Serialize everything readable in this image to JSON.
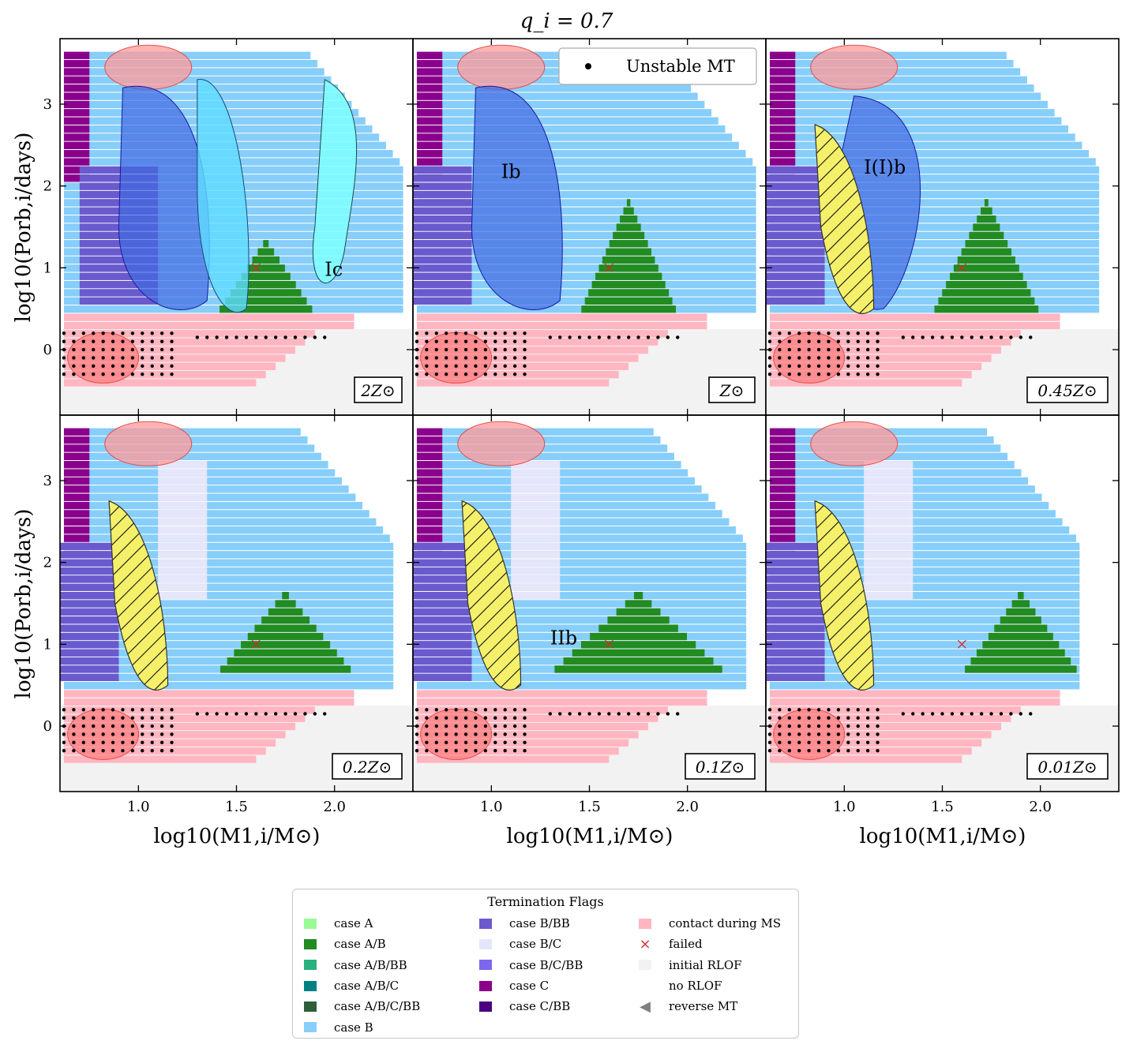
{
  "figure_title": "q_i = 0.7",
  "x_label": "log10(M1,i/M⊙)",
  "y_label": "log10(Porb,i/days)",
  "chart_data": {
    "type": "heatmap",
    "title": "q_i = 0.7",
    "xlabel": "log10(M1,i/M⊙)",
    "ylabel": "log10(Porb,i/days)",
    "xlim": [
      0.6,
      2.4
    ],
    "ylim": [
      -0.8,
      3.8
    ],
    "xticks": [
      "1.0",
      "1.5",
      "2.0"
    ],
    "yticks": [
      "0",
      "1",
      "2",
      "3"
    ],
    "panels": [
      {
        "id": "2Zsun",
        "metallicity": "2Z⊙",
        "label": "Ic",
        "label_pos": [
          1.95,
          0.9
        ]
      },
      {
        "id": "1Zsun",
        "metallicity": "Z⊙",
        "label": "Ib",
        "label_pos": [
          1.05,
          2.1
        ]
      },
      {
        "id": "045Zsun",
        "metallicity": "0.45Z⊙",
        "label": "I(I)b",
        "label_pos": [
          1.1,
          2.15
        ]
      },
      {
        "id": "02Zsun",
        "metallicity": "0.2Z⊙",
        "label": "",
        "label_pos": [
          0,
          0
        ]
      },
      {
        "id": "01Zsun",
        "metallicity": "0.1Z⊙",
        "label": "IIb",
        "label_pos": [
          1.3,
          1.0
        ]
      },
      {
        "id": "001Zsun",
        "metallicity": "0.01Z⊙",
        "label": "",
        "label_pos": [
          0,
          0
        ]
      }
    ],
    "overlay_legend": "Unstable MT",
    "legend_title": "Termination Flags",
    "legend_entries": [
      {
        "label": "case A",
        "color": "#98fb98",
        "kind": "patch"
      },
      {
        "label": "case A/B",
        "color": "#228b22",
        "kind": "patch"
      },
      {
        "label": "case A/B/BB",
        "color": "#2ab07f",
        "kind": "patch"
      },
      {
        "label": "case A/B/C",
        "color": "#008080",
        "kind": "patch"
      },
      {
        "label": "case A/B/C/BB",
        "color": "#2f5f3a",
        "kind": "patch"
      },
      {
        "label": "case B",
        "color": "#87cefa",
        "kind": "patch"
      },
      {
        "label": "case B/BB",
        "color": "#6a5acd",
        "kind": "patch"
      },
      {
        "label": "case B/C",
        "color": "#e6e6fa",
        "kind": "patch"
      },
      {
        "label": "case B/C/BB",
        "color": "#7b68ee",
        "kind": "patch"
      },
      {
        "label": "case C",
        "color": "#8b008b",
        "kind": "patch"
      },
      {
        "label": "case C/BB",
        "color": "#4b0082",
        "kind": "patch"
      },
      {
        "label": "contact during MS",
        "color": "#ffb6c1",
        "kind": "patch"
      },
      {
        "label": "failed",
        "color": "#d62728",
        "kind": "x"
      },
      {
        "label": "initial RLOF",
        "color": "#f2f2f2",
        "kind": "patch"
      },
      {
        "label": "no RLOF",
        "color": "#ffffff",
        "kind": "patch"
      },
      {
        "label": "reverse MT",
        "color": "#808080",
        "kind": "triangle"
      }
    ]
  }
}
